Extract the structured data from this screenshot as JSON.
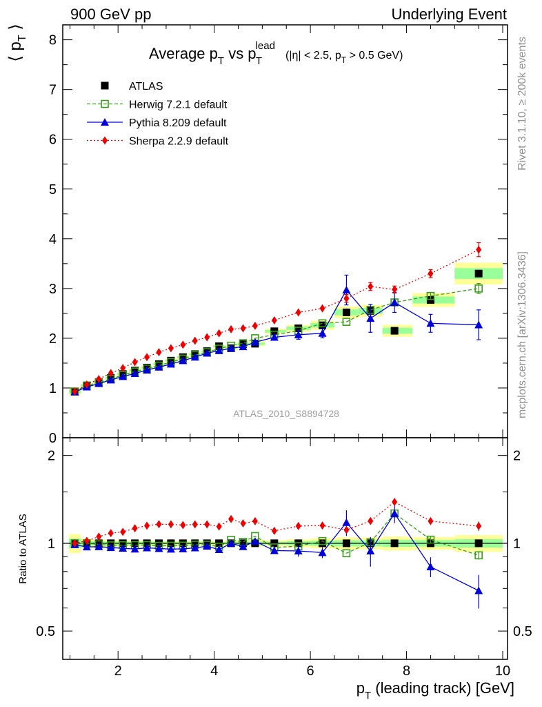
{
  "header": {
    "left": "900 GeV pp",
    "right": "Underlying Event"
  },
  "side_labels": {
    "top": "Rivet 3.1.10, ≥ 200k events",
    "bottom": "mcplots.cern.ch [arXiv:1306.3436]"
  },
  "chart_data": {
    "type": "scatter",
    "title": "Average p_T vs p_T^lead",
    "title_cut": "(|η| < 2.5, p_T > 0.5 GeV)",
    "analysis_id": "ATLAS_2010_S8894728",
    "xlabel": "p_T (leading track) [GeV]",
    "ylabel_main": "⟨ p_T ⟩",
    "ylabel_ratio": "Ratio to ATLAS",
    "xlim": [
      0.85,
      10.1
    ],
    "ylim_main": [
      0,
      8.3
    ],
    "ylim_ratio": [
      0.4,
      2.3
    ],
    "xticks": [
      2,
      4,
      6,
      8,
      10
    ],
    "yticks_main": [
      0,
      1,
      2,
      3,
      4,
      5,
      6,
      7,
      8
    ],
    "yticks_ratio": [
      0.5,
      1,
      2
    ],
    "legend_position": "top-left",
    "x": [
      1.1,
      1.35,
      1.6,
      1.85,
      2.1,
      2.35,
      2.6,
      2.85,
      3.1,
      3.35,
      3.6,
      3.85,
      4.1,
      4.35,
      4.6,
      4.85,
      5.25,
      5.75,
      6.25,
      6.75,
      7.25,
      7.75,
      8.5,
      9.5
    ],
    "series": [
      {
        "name": "ATLAS",
        "color": "#000000",
        "marker": "square",
        "values": [
          0.93,
          1.05,
          1.12,
          1.2,
          1.28,
          1.35,
          1.41,
          1.48,
          1.55,
          1.62,
          1.68,
          1.74,
          1.84,
          1.8,
          1.88,
          1.89,
          2.14,
          2.2,
          2.26,
          2.52,
          2.55,
          2.15,
          2.77,
          3.3
        ],
        "band_hi": [
          0.07,
          0.04,
          0.03,
          0.03,
          0.03,
          0.03,
          0.03,
          0.03,
          0.03,
          0.03,
          0.03,
          0.03,
          0.03,
          0.04,
          0.04,
          0.05,
          0.05,
          0.07,
          0.09,
          0.12,
          0.12,
          0.12,
          0.14,
          0.22
        ],
        "band_lo": [
          0.07,
          0.04,
          0.03,
          0.03,
          0.03,
          0.03,
          0.03,
          0.03,
          0.03,
          0.03,
          0.03,
          0.03,
          0.03,
          0.04,
          0.04,
          0.05,
          0.05,
          0.07,
          0.09,
          0.12,
          0.12,
          0.12,
          0.14,
          0.22
        ]
      },
      {
        "name": "Herwig 7.2.1 default",
        "color": "#3a9b1a",
        "marker": "open-square",
        "values": [
          0.93,
          1.05,
          1.11,
          1.18,
          1.26,
          1.33,
          1.39,
          1.45,
          1.52,
          1.59,
          1.66,
          1.72,
          1.79,
          1.85,
          1.9,
          2.0,
          2.07,
          2.15,
          2.3,
          2.33,
          2.57,
          2.72,
          2.85,
          3.0
        ],
        "errors": [
          0,
          0,
          0,
          0,
          0,
          0,
          0,
          0,
          0,
          0,
          0,
          0,
          0,
          0,
          0,
          0,
          0,
          0,
          0,
          0,
          0.07,
          0.06,
          0.07,
          0.1
        ]
      },
      {
        "name": "Pythia 8.209 default",
        "color": "#0000dd",
        "marker": "triangle",
        "values": [
          0.92,
          1.02,
          1.09,
          1.16,
          1.23,
          1.29,
          1.36,
          1.42,
          1.48,
          1.55,
          1.62,
          1.7,
          1.75,
          1.8,
          1.83,
          1.92,
          2.02,
          2.07,
          2.1,
          2.97,
          2.4,
          2.72,
          2.3,
          2.27
        ],
        "errors": [
          0,
          0,
          0,
          0,
          0,
          0,
          0,
          0,
          0,
          0,
          0,
          0,
          0,
          0,
          0,
          0.04,
          0.05,
          0.09,
          0.09,
          0.3,
          0.28,
          0.2,
          0.18,
          0.3
        ]
      },
      {
        "name": "Sherpa 2.2.9 default",
        "color": "#ee0000",
        "marker": "diamond",
        "values": [
          0.93,
          1.07,
          1.18,
          1.3,
          1.4,
          1.52,
          1.62,
          1.72,
          1.8,
          1.87,
          1.95,
          2.02,
          2.1,
          2.18,
          2.2,
          2.25,
          2.36,
          2.52,
          2.6,
          2.8,
          3.04,
          2.98,
          3.3,
          3.78
        ],
        "errors": [
          0,
          0,
          0,
          0,
          0,
          0,
          0,
          0,
          0,
          0,
          0,
          0,
          0,
          0,
          0,
          0,
          0,
          0,
          0,
          0.08,
          0.08,
          0.07,
          0.08,
          0.14
        ]
      }
    ]
  }
}
